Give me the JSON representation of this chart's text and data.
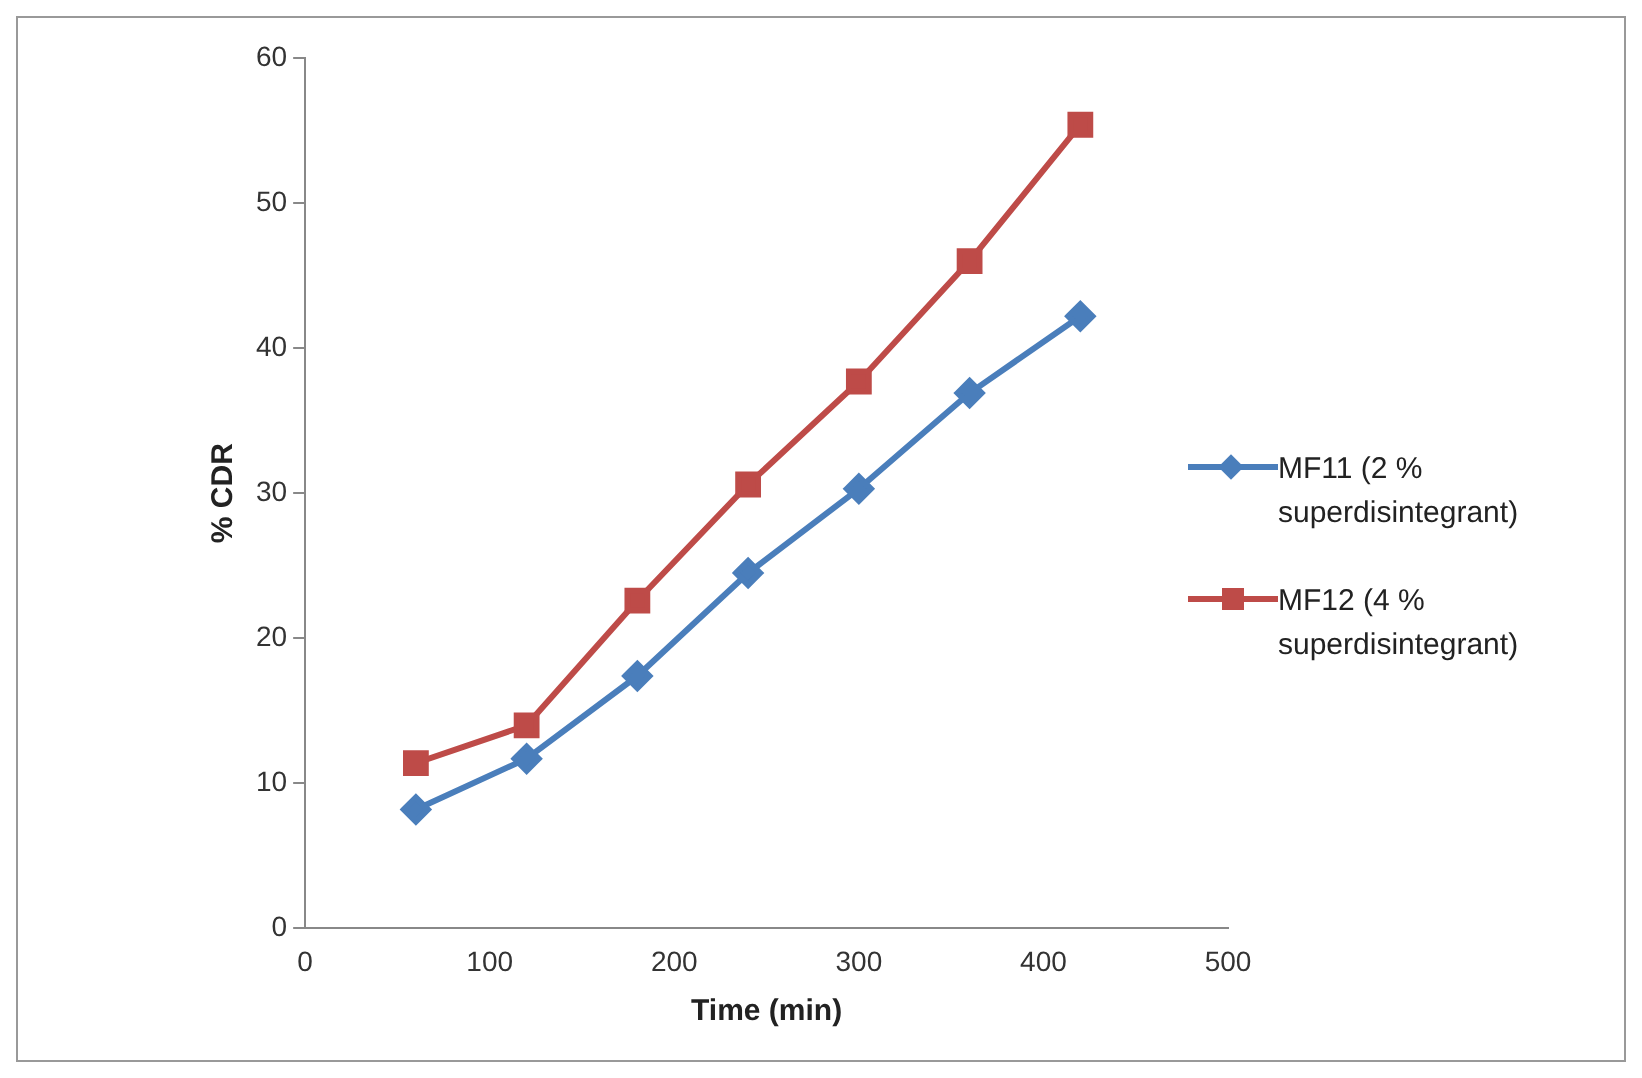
{
  "chart_data": {
    "type": "line",
    "xlabel": "Time (min)",
    "ylabel": "% CDR",
    "x": [
      60,
      120,
      180,
      240,
      300,
      360,
      420
    ],
    "series": [
      {
        "name": "MF11 (2 % superdisintegrant)",
        "color": "#4a7ebb",
        "marker": "diamond",
        "values": [
          8.2,
          11.7,
          17.4,
          24.5,
          30.3,
          36.9,
          42.2
        ]
      },
      {
        "name": "MF12 (4 % superdisintegrant)",
        "color": "#be4b48",
        "marker": "square",
        "values": [
          11.4,
          14.0,
          22.6,
          30.6,
          37.7,
          46.0,
          55.4
        ]
      }
    ],
    "xlim": [
      0,
      500
    ],
    "xticks": [
      0,
      100,
      200,
      300,
      400,
      500
    ],
    "ylim": [
      0,
      60
    ],
    "yticks": [
      0,
      10,
      20,
      30,
      40,
      50,
      60
    ],
    "grid": false,
    "legend": "right",
    "line_style": "solid"
  }
}
